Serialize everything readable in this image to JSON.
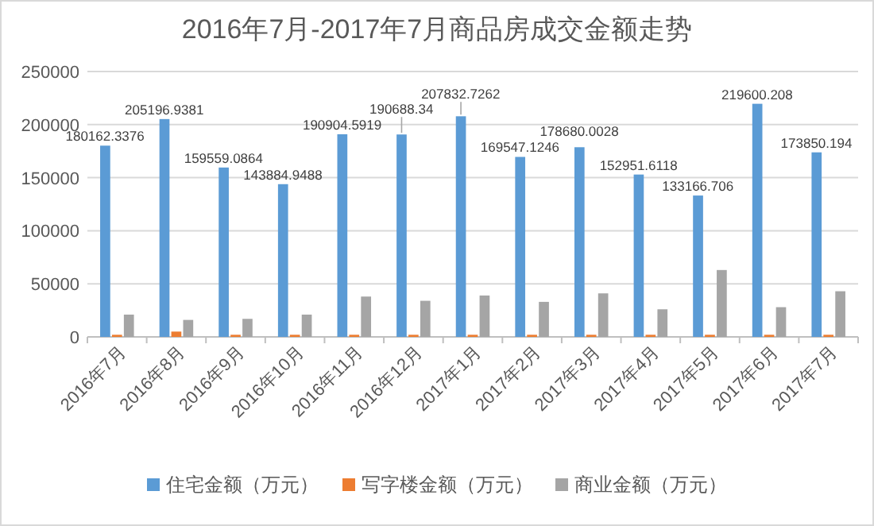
{
  "chart_data": {
    "type": "bar",
    "title": "2016年7月-2017年7月商品房成交金额走势",
    "categories": [
      "2016年7月",
      "2016年8月",
      "2016年9月",
      "2016年10月",
      "2016年11月",
      "2016年12月",
      "2017年1月",
      "2017年2月",
      "2017年3月",
      "2017年4月",
      "2017年5月",
      "2017年6月",
      "2017年7月"
    ],
    "series": [
      {
        "name": "住宅金额（万元）",
        "color": "#5b9bd5",
        "values": [
          180162.3376,
          205196.9381,
          159559.0864,
          143884.9488,
          190904.5919,
          190688.34,
          207832.7262,
          169547.1246,
          178680.0028,
          152951.6118,
          133166.706,
          219600.208,
          173850.194
        ],
        "value_labels": [
          "180162.3376",
          "205196.9381",
          "159559.0864",
          "143884.9488",
          "190904.5919",
          "190688.34",
          "207832.7262",
          "169547.1246",
          "178680.0028",
          "152951.6118",
          "133166.706",
          "219600.208",
          "173850.194"
        ]
      },
      {
        "name": "写字楼金额（万元）",
        "color": "#ed7d31",
        "values": [
          2000,
          5000,
          2000,
          2000,
          2000,
          2000,
          2000,
          2000,
          2000,
          2000,
          2000,
          2000,
          2000
        ]
      },
      {
        "name": "商业金额（万元）",
        "color": "#a5a5a5",
        "values": [
          21000,
          16000,
          17000,
          21000,
          38000,
          34000,
          39000,
          33000,
          41000,
          26000,
          63000,
          28000,
          43000
        ]
      }
    ],
    "ylim": [
      0,
      250000
    ],
    "yticks": [
      0,
      50000,
      100000,
      150000,
      200000,
      250000
    ],
    "grid": "y",
    "legend": "bottom"
  }
}
